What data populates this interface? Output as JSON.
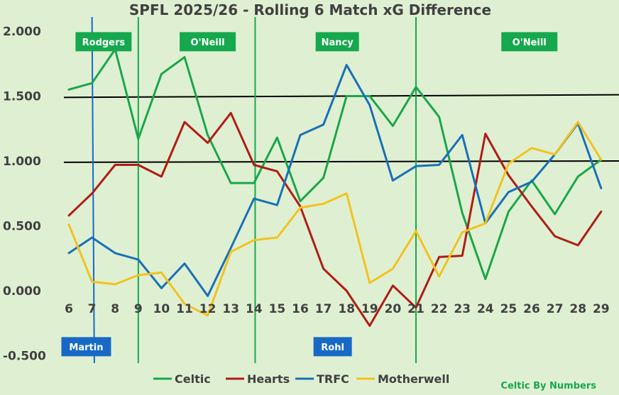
{
  "chart_data": {
    "type": "line",
    "title": "SPFL 2025/26 - Rolling 6 Match xG Difference",
    "x": [
      6,
      7,
      8,
      9,
      10,
      11,
      12,
      13,
      14,
      15,
      16,
      17,
      18,
      19,
      20,
      21,
      22,
      23,
      24,
      25,
      26,
      27,
      28,
      29
    ],
    "ylim": [
      -0.5,
      2.0
    ],
    "yticks": [
      "2.000",
      "1.500",
      "1.000",
      "0.500",
      "0.000",
      "-0.500"
    ],
    "ytick_values": [
      2.0,
      1.5,
      1.0,
      0.5,
      0.0,
      -0.5
    ],
    "grid": false,
    "legend_position": "bottom",
    "series": [
      {
        "name": "Celtic",
        "color": "#1aa64a",
        "values": [
          1.55,
          1.6,
          1.86,
          1.17,
          1.67,
          1.8,
          1.2,
          0.83,
          0.83,
          1.18,
          0.69,
          0.87,
          1.5,
          1.5,
          1.27,
          1.57,
          1.34,
          0.6,
          0.09,
          0.61,
          0.85,
          0.59,
          0.88,
          1.01
        ]
      },
      {
        "name": "Hearts",
        "color": "#b01c14",
        "values": [
          0.58,
          0.75,
          0.97,
          0.97,
          0.88,
          1.3,
          1.14,
          1.37,
          0.97,
          0.92,
          0.65,
          0.17,
          0.0,
          -0.27,
          0.04,
          -0.13,
          0.26,
          0.27,
          1.21,
          0.89,
          0.65,
          0.42,
          0.35,
          0.61
        ]
      },
      {
        "name": "TRFC",
        "color": "#1a6fb8",
        "values": [
          0.29,
          0.41,
          0.29,
          0.24,
          0.02,
          0.21,
          -0.04,
          0.33,
          0.71,
          0.66,
          1.2,
          1.28,
          1.74,
          1.43,
          0.85,
          0.96,
          0.97,
          1.2,
          0.52,
          0.76,
          0.84,
          1.05,
          1.29,
          0.79
        ]
      },
      {
        "name": "Motherwell",
        "color": "#f2c21f",
        "values": [
          0.51,
          0.07,
          0.05,
          0.12,
          0.14,
          -0.1,
          -0.19,
          0.3,
          0.39,
          0.41,
          0.64,
          0.67,
          0.75,
          0.06,
          0.17,
          0.46,
          0.11,
          0.45,
          0.52,
          0.98,
          1.1,
          1.05,
          1.3,
          1.01
        ]
      }
    ],
    "reference_lines": [
      {
        "color": "#000000",
        "y_start": 1.49,
        "y_end": 1.51
      },
      {
        "color": "#000000",
        "y_start": 0.99,
        "y_end": 1.0
      }
    ],
    "annotations": {
      "green_color": "#16a84d",
      "blue_color": "#1769c5",
      "verticals": [
        {
          "color": "#1769c5",
          "x_top": 7.0,
          "x_bottom": 7.1
        },
        {
          "color": "#16a84d",
          "x_top": 9.0,
          "x_bottom": 9.0
        },
        {
          "color": "#16a84d",
          "x_top": 14.05,
          "x_bottom": 14.05
        },
        {
          "color": "#16a84d",
          "x_top": 21.0,
          "x_bottom": 21.0
        }
      ],
      "labels": [
        {
          "text": "Rodgers",
          "color": "#16a84d",
          "x": 7.5,
          "y": 1.99
        },
        {
          "text": "O'Neill",
          "color": "#16a84d",
          "x": 12.0,
          "y": 1.99
        },
        {
          "text": "Nancy",
          "color": "#16a84d",
          "x": 17.6,
          "y": 1.99
        },
        {
          "text": "O'Neill",
          "color": "#16a84d",
          "x": 25.9,
          "y": 1.99
        },
        {
          "text": "Martin",
          "color": "#1769c5",
          "x": 6.75,
          "y": -0.36
        },
        {
          "text": "Rohl",
          "color": "#1769c5",
          "x": 17.4,
          "y": -0.36
        }
      ]
    }
  },
  "credit": {
    "text": "Celtic By Numbers",
    "color": "#16a84d"
  }
}
